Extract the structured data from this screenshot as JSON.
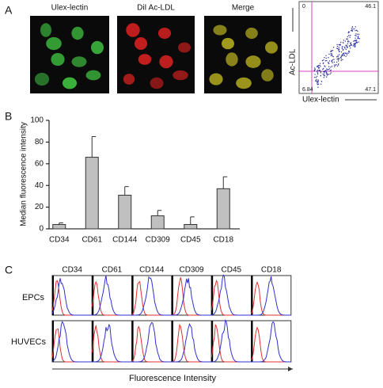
{
  "panel_a": {
    "label": "A",
    "image_titles": [
      "Ulex-lectin",
      "DiI Ac-LDL",
      "Merge"
    ],
    "flow": {
      "y_label": "Ac-LDL",
      "x_label": "Ulex-lectin",
      "quadrants": [
        "0",
        "46.1",
        "6.84",
        "47.1"
      ]
    }
  },
  "chart_data": {
    "label": "B",
    "type": "bar",
    "y_label": "Median fluorescence intensity",
    "categories": [
      "CD34",
      "CD61",
      "CD144",
      "CD309",
      "CD45",
      "CD18"
    ],
    "values": [
      4,
      66,
      31,
      12,
      4,
      37
    ],
    "errors": [
      1.5,
      19,
      8,
      5,
      7,
      11
    ],
    "color": "#c0c0c0",
    "ylim": [
      0,
      100
    ],
    "yticks": [
      0,
      20,
      40,
      60,
      80,
      100
    ]
  },
  "panel_c": {
    "label": "C",
    "columns": [
      "CD34",
      "CD61",
      "CD144",
      "CD309",
      "CD45",
      "CD18"
    ],
    "rows": [
      "EPCs",
      "HUVECs"
    ],
    "x_label": "Fluorescence Intensity"
  }
}
